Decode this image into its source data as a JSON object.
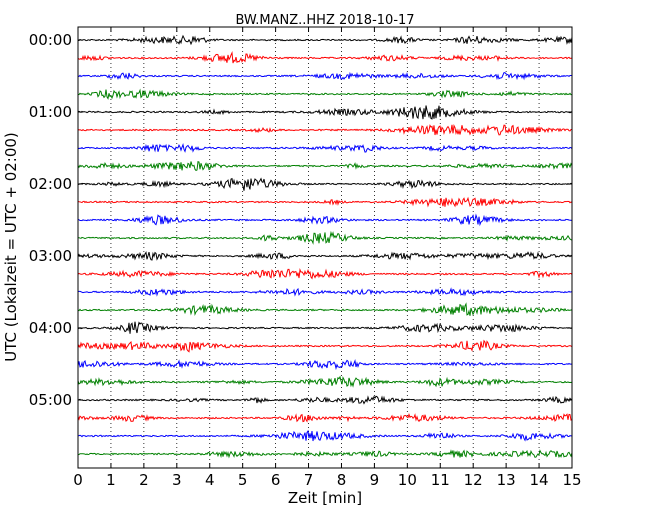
{
  "chart_data": {
    "type": "line",
    "title": "BW.MANZ..HHZ 2018-10-17",
    "xlabel": "Zeit  [min]",
    "ylabel": "UTC (Lokalzeit = UTC + 02:00)",
    "xlim": [
      0,
      15
    ],
    "x_ticks": [
      0,
      1,
      2,
      3,
      4,
      5,
      6,
      7,
      8,
      9,
      10,
      11,
      12,
      13,
      14,
      15
    ],
    "x_tick_labels": [
      "0",
      "1",
      "2",
      "3",
      "4",
      "5",
      "6",
      "7",
      "8",
      "9",
      "10",
      "11",
      "12",
      "13",
      "14",
      "15"
    ],
    "y_tick_labels": [
      "00:00",
      "01:00",
      "02:00",
      "03:00",
      "04:00",
      "05:00"
    ],
    "grid": "x-dotted",
    "trace_colors": [
      "#000000",
      "#ff0000",
      "#0000ff",
      "#008000"
    ],
    "trace_count": 24,
    "trace_interval_min": 15
  }
}
